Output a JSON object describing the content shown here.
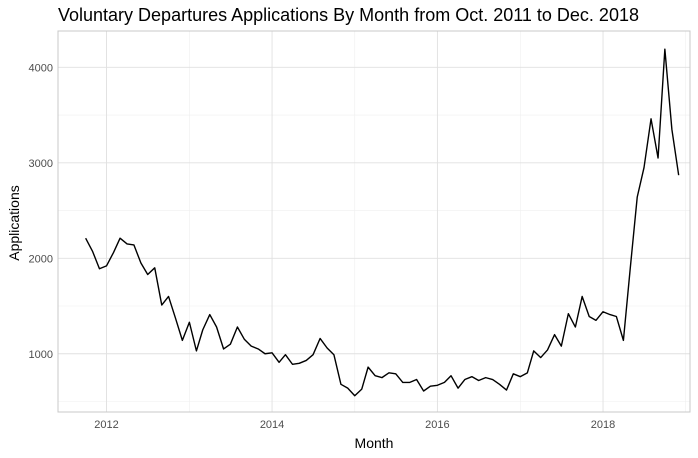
{
  "chart_data": {
    "type": "line",
    "title": "Voluntary Departures Applications By Month from Oct. 2011 to Dec. 2018",
    "xlabel": "Month",
    "ylabel": "Applications",
    "xlim": [
      "2011-06-01",
      "2019-01-20"
    ],
    "ylim": [
      390,
      4380
    ],
    "x_ticks": [
      {
        "label": "2012",
        "date": "2012-01-01"
      },
      {
        "label": "2014",
        "date": "2014-01-01"
      },
      {
        "label": "2016",
        "date": "2016-01-01"
      },
      {
        "label": "2018",
        "date": "2018-01-01"
      }
    ],
    "y_ticks": [
      1000,
      2000,
      3000,
      4000
    ],
    "grid": true,
    "legend": "none",
    "series": [
      {
        "x": [
          "2011-10",
          "2011-11",
          "2011-12",
          "2012-01",
          "2012-02",
          "2012-03",
          "2012-04",
          "2012-05",
          "2012-06",
          "2012-07",
          "2012-08",
          "2012-09",
          "2012-10",
          "2012-11",
          "2012-12",
          "2013-01",
          "2013-02",
          "2013-03",
          "2013-04",
          "2013-05",
          "2013-06",
          "2013-07",
          "2013-08",
          "2013-09",
          "2013-10",
          "2013-11",
          "2013-12",
          "2014-01",
          "2014-02",
          "2014-03",
          "2014-04",
          "2014-05",
          "2014-06",
          "2014-07",
          "2014-08",
          "2014-09",
          "2014-10",
          "2014-11",
          "2014-12",
          "2015-01",
          "2015-02",
          "2015-03",
          "2015-04",
          "2015-05",
          "2015-06",
          "2015-07",
          "2015-08",
          "2015-09",
          "2015-10",
          "2015-11",
          "2015-12",
          "2016-01",
          "2016-02",
          "2016-03",
          "2016-04",
          "2016-05",
          "2016-06",
          "2016-07",
          "2016-08",
          "2016-09",
          "2016-10",
          "2016-11",
          "2016-12",
          "2017-01",
          "2017-02",
          "2017-03",
          "2017-04",
          "2017-05",
          "2017-06",
          "2017-07",
          "2017-08",
          "2017-09",
          "2017-10",
          "2017-11",
          "2017-12",
          "2018-01",
          "2018-02",
          "2018-03",
          "2018-04",
          "2018-05",
          "2018-06",
          "2018-07",
          "2018-08",
          "2018-09",
          "2018-10",
          "2018-11",
          "2018-12"
        ],
        "values": [
          2210,
          2070,
          1890,
          1920,
          2060,
          2210,
          2150,
          2140,
          1950,
          1830,
          1900,
          1510,
          1600,
          1370,
          1140,
          1330,
          1030,
          1250,
          1410,
          1280,
          1050,
          1100,
          1280,
          1150,
          1080,
          1050,
          1000,
          1010,
          910,
          990,
          890,
          900,
          930,
          990,
          1160,
          1060,
          990,
          680,
          640,
          560,
          630,
          860,
          770,
          750,
          800,
          790,
          700,
          700,
          730,
          610,
          660,
          670,
          700,
          770,
          640,
          730,
          760,
          720,
          750,
          730,
          680,
          620,
          790,
          760,
          800,
          1030,
          960,
          1040,
          1200,
          1080,
          1420,
          1280,
          1600,
          1390,
          1350,
          1440,
          1410,
          1390,
          1140,
          1890,
          2640,
          2950,
          3460,
          3050,
          4190,
          3350,
          2870
        ]
      }
    ]
  }
}
